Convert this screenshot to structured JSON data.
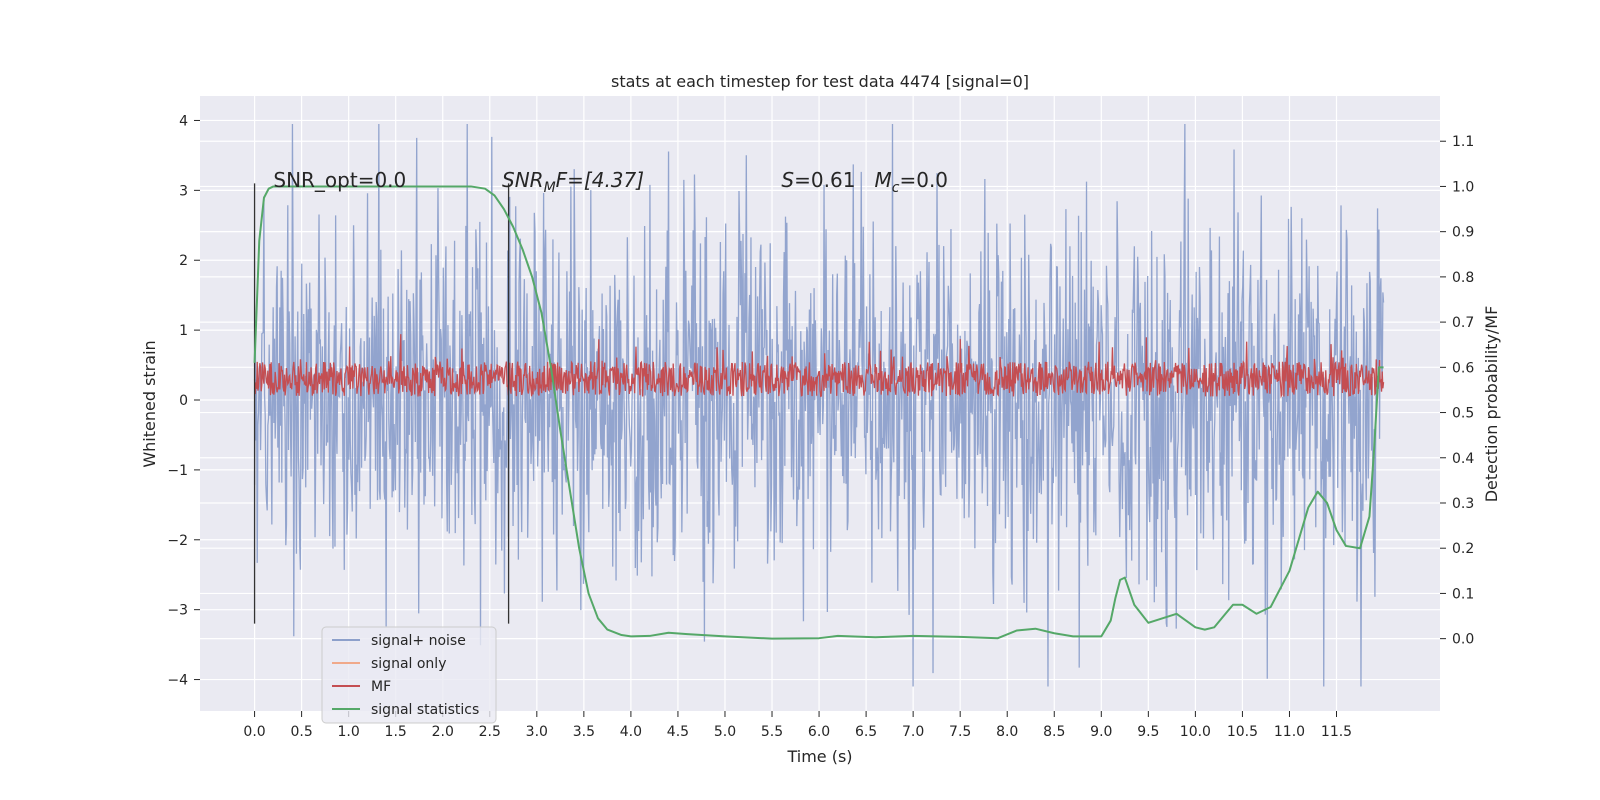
{
  "chart_data": {
    "type": "line",
    "title": "stats at each timestep for test data 4474 [signal=0]",
    "xlabel": "Time (s)",
    "ylabel": "Whitened strain",
    "y2label": "Detection probability/MF",
    "xlim": [
      -0.58,
      12.6
    ],
    "ylim": [
      -4.45,
      4.35
    ],
    "y2lim": [
      -0.16,
      1.2
    ],
    "x_ticks": [
      0.0,
      0.5,
      1.0,
      1.5,
      2.0,
      2.5,
      3.0,
      3.5,
      4.0,
      4.5,
      5.0,
      5.5,
      6.0,
      6.5,
      7.0,
      7.5,
      8.0,
      8.5,
      9.0,
      9.5,
      10.0,
      10.5,
      11.0,
      11.5
    ],
    "x_tick_labels": [
      "0.0",
      "0.5",
      "1.0",
      "1.5",
      "2.0",
      "2.5",
      "3.0",
      "3.5",
      "4.0",
      "4.5",
      "5.0",
      "5.5",
      "6.0",
      "6.5",
      "7.0",
      "7.5",
      "8.0",
      "8.5",
      "9.0",
      "9.5",
      "10.0",
      "10.5",
      "11.0",
      "11.5"
    ],
    "y_ticks": [
      -4,
      -3,
      -2,
      -1,
      0,
      1,
      2,
      3,
      4
    ],
    "y_tick_labels": [
      "−4",
      "−3",
      "−2",
      "−1",
      "0",
      "1",
      "2",
      "3",
      "4"
    ],
    "y2_ticks": [
      0.0,
      0.1,
      0.2,
      0.3,
      0.4,
      0.5,
      0.6,
      0.7,
      0.8,
      0.9,
      1.0,
      1.1
    ],
    "y2_tick_labels": [
      "0.0",
      "0.1",
      "0.2",
      "0.3",
      "0.4",
      "0.5",
      "0.6",
      "0.7",
      "0.8",
      "0.9",
      "1.0",
      "1.1"
    ],
    "grid": true,
    "legend_position": "lower-left",
    "series": [
      {
        "name": "signal+ noise",
        "color": "#8da0cb",
        "axis": "left",
        "x_range": [
          0.0,
          12.0
        ],
        "typical_amplitude": 1.3,
        "max": 3.95,
        "min": -4.1
      },
      {
        "name": "signal only",
        "color": "#f0a98a",
        "axis": "left",
        "values": []
      },
      {
        "name": "MF",
        "color": "#c44e52",
        "axis": "left",
        "x_range": [
          0.0,
          12.0
        ],
        "baseline": 0.3,
        "typical_amplitude": 0.25,
        "max": 1.0,
        "min": 0.0
      },
      {
        "name": "signal statistics",
        "color": "#55a868",
        "axis": "right",
        "x": [
          0.0,
          0.05,
          0.1,
          0.15,
          0.2,
          0.4,
          1.0,
          2.0,
          2.3,
          2.45,
          2.55,
          2.65,
          2.75,
          2.85,
          2.95,
          3.05,
          3.15,
          3.25,
          3.35,
          3.45,
          3.55,
          3.65,
          3.75,
          3.9,
          4.0,
          4.2,
          4.4,
          4.6,
          5.0,
          5.5,
          6.0,
          6.2,
          6.6,
          7.0,
          7.5,
          7.9,
          8.1,
          8.3,
          8.5,
          8.7,
          9.0,
          9.1,
          9.15,
          9.2,
          9.25,
          9.35,
          9.5,
          9.8,
          10.0,
          10.1,
          10.2,
          10.3,
          10.4,
          10.5,
          10.65,
          10.8,
          11.0,
          11.2,
          11.3,
          11.4,
          11.5,
          11.6,
          11.75,
          11.85,
          11.9,
          11.95,
          12.0
        ],
        "values": [
          0.61,
          0.88,
          0.975,
          0.995,
          1.0,
          1.0,
          1.0,
          1.0,
          1.0,
          0.995,
          0.98,
          0.95,
          0.91,
          0.86,
          0.8,
          0.72,
          0.6,
          0.46,
          0.33,
          0.2,
          0.1,
          0.045,
          0.02,
          0.008,
          0.005,
          0.006,
          0.013,
          0.01,
          0.005,
          0.0,
          0.001,
          0.006,
          0.003,
          0.006,
          0.004,
          0.001,
          0.018,
          0.022,
          0.012,
          0.005,
          0.005,
          0.04,
          0.09,
          0.13,
          0.135,
          0.075,
          0.035,
          0.055,
          0.025,
          0.02,
          0.025,
          0.05,
          0.075,
          0.075,
          0.055,
          0.07,
          0.15,
          0.29,
          0.325,
          0.3,
          0.24,
          0.205,
          0.2,
          0.27,
          0.42,
          0.6,
          0.6
        ]
      }
    ],
    "annotations": [
      {
        "text": "SNR_opt=0.0",
        "x": 0.2,
        "y": 3.05
      },
      {
        "text_parts": [
          "SNR",
          "M",
          "F=[4.37]"
        ],
        "x": 2.63,
        "y": 3.05
      },
      {
        "text_parts": [
          "S",
          "=0.61   ",
          "M",
          "c",
          "=0.0"
        ],
        "x": 5.6,
        "y": 3.05
      }
    ],
    "vertical_lines": [
      {
        "x": 0.0,
        "color": "#333333"
      },
      {
        "x": 2.7,
        "color": "#333333"
      }
    ]
  }
}
